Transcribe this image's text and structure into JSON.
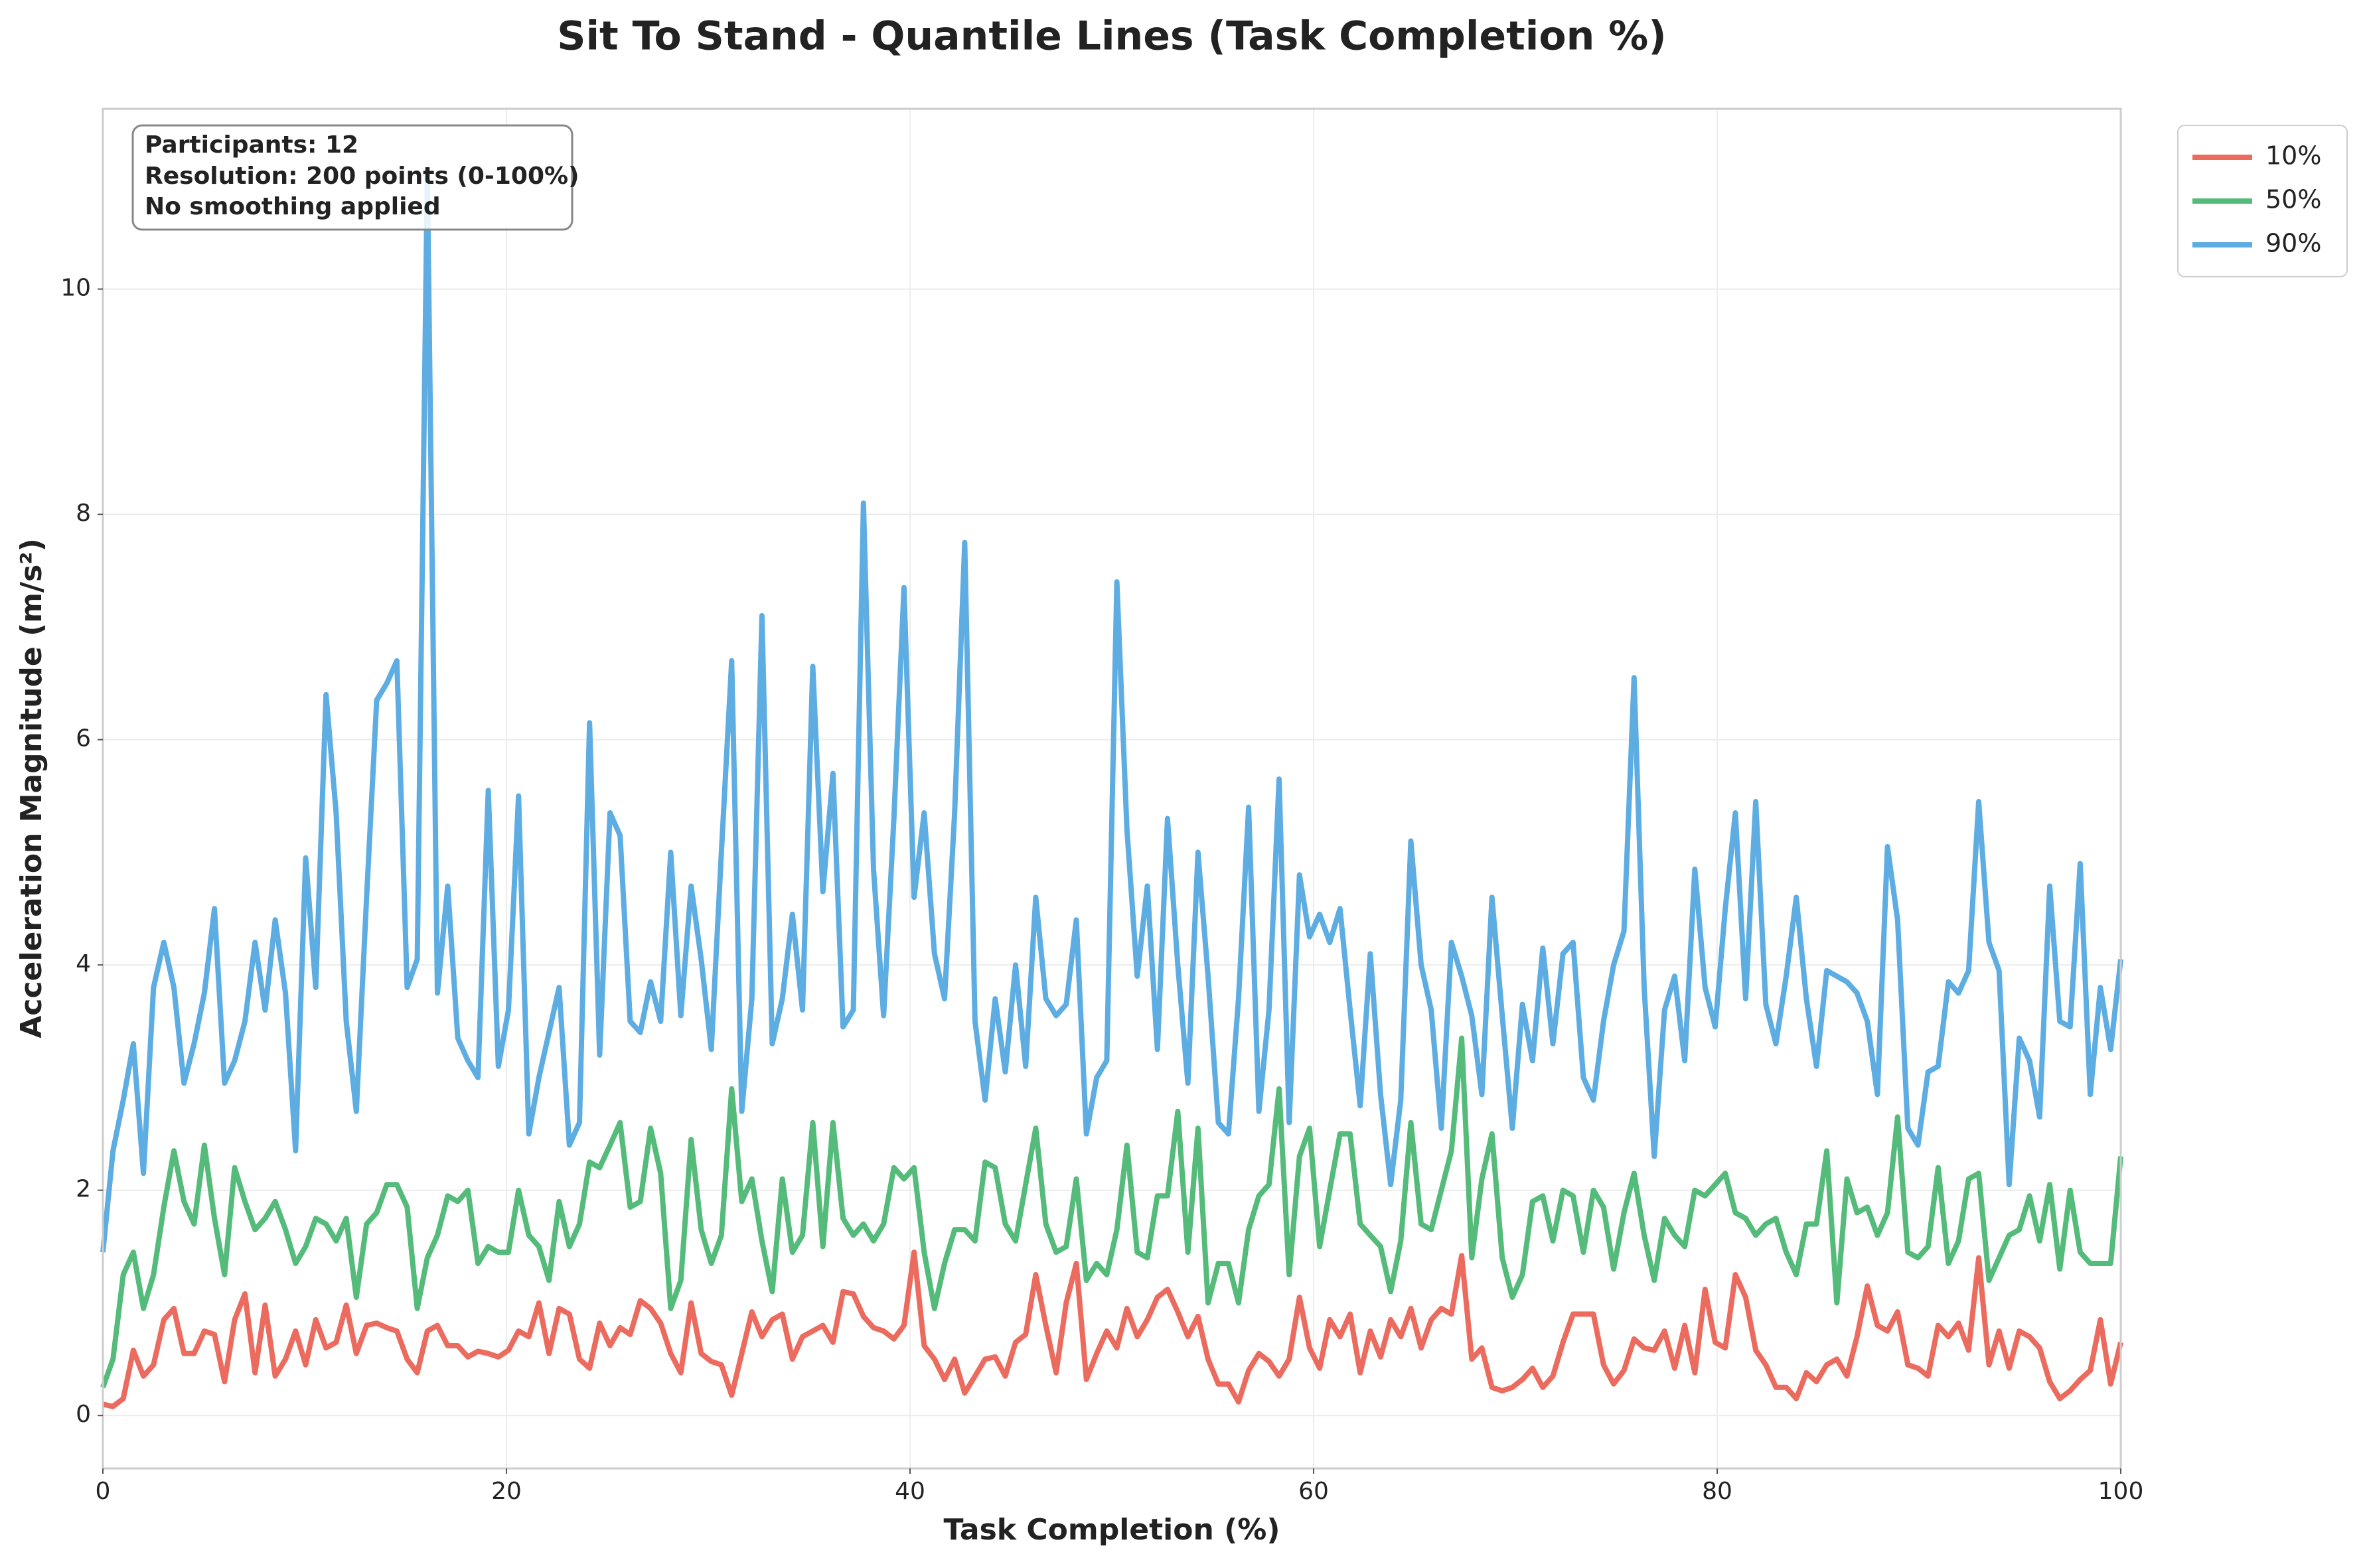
{
  "chart_data": {
    "type": "line",
    "title": "Sit To Stand - Quantile Lines (Task Completion %)",
    "xlabel": "Task Completion (%)",
    "ylabel": "Acceleration Magnitude (m/s²)",
    "annotation": [
      "Participants: 12",
      "Resolution: 200 points (0-100%)",
      "No smoothing applied"
    ],
    "xlim": [
      0,
      100
    ],
    "xticks": [
      0,
      20,
      40,
      60,
      80,
      100
    ],
    "ylim": [
      -0.47,
      11.6
    ],
    "yticks": [
      0,
      2,
      4,
      6,
      8,
      10
    ],
    "grid": true,
    "legend": "outside-upper-right",
    "x": [
      0,
      0.5,
      1.01,
      1.51,
      2.01,
      2.51,
      3.02,
      3.52,
      4.02,
      4.52,
      5.03,
      5.53,
      6.03,
      6.53,
      7.04,
      7.54,
      8.04,
      8.54,
      9.05,
      9.55,
      10.05,
      10.55,
      11.06,
      11.56,
      12.06,
      12.56,
      13.07,
      13.57,
      14.07,
      14.57,
      15.08,
      15.58,
      16.08,
      16.58,
      17.09,
      17.59,
      18.09,
      18.59,
      19.1,
      19.6,
      20.1,
      20.6,
      21.11,
      21.61,
      22.11,
      22.61,
      23.12,
      23.62,
      24.12,
      24.62,
      25.13,
      25.63,
      26.13,
      26.63,
      27.14,
      27.64,
      28.14,
      28.64,
      29.15,
      29.65,
      30.15,
      30.65,
      31.16,
      31.66,
      32.16,
      32.66,
      33.17,
      33.67,
      34.17,
      34.67,
      35.18,
      35.68,
      36.18,
      36.68,
      37.19,
      37.69,
      38.19,
      38.69,
      39.2,
      39.7,
      40.2,
      40.7,
      41.21,
      41.71,
      42.21,
      42.71,
      43.22,
      43.72,
      44.22,
      44.72,
      45.23,
      45.73,
      46.23,
      46.73,
      47.24,
      47.74,
      48.24,
      48.74,
      49.25,
      49.75,
      50.25,
      50.75,
      51.26,
      51.76,
      52.26,
      52.76,
      53.27,
      53.77,
      54.27,
      54.77,
      55.28,
      55.78,
      56.28,
      56.78,
      57.29,
      57.79,
      58.29,
      58.79,
      59.3,
      59.8,
      60.3,
      60.8,
      61.31,
      61.81,
      62.31,
      62.81,
      63.32,
      63.82,
      64.32,
      64.82,
      65.33,
      65.83,
      66.33,
      66.83,
      67.34,
      67.84,
      68.34,
      68.84,
      69.35,
      69.85,
      70.35,
      70.85,
      71.36,
      71.86,
      72.36,
      72.86,
      73.37,
      73.87,
      74.37,
      74.87,
      75.38,
      75.88,
      76.38,
      76.88,
      77.39,
      77.89,
      78.39,
      78.89,
      79.4,
      79.9,
      80.4,
      80.9,
      81.41,
      81.91,
      82.41,
      82.91,
      83.42,
      83.92,
      84.42,
      84.92,
      85.43,
      85.93,
      86.43,
      86.93,
      87.44,
      87.94,
      88.44,
      88.94,
      89.45,
      89.95,
      90.45,
      90.95,
      91.46,
      91.96,
      92.46,
      92.96,
      93.47,
      93.97,
      94.47,
      94.97,
      95.48,
      95.98,
      96.48,
      96.98,
      97.49,
      97.99,
      98.49,
      98.99,
      99.5,
      100
    ],
    "series": [
      {
        "name": "10%",
        "color": "#eb6b5f",
        "values": [
          0.1,
          0.08,
          0.15,
          0.58,
          0.35,
          0.45,
          0.85,
          0.95,
          0.55,
          0.55,
          0.75,
          0.72,
          0.3,
          0.85,
          1.08,
          0.38,
          0.98,
          0.35,
          0.5,
          0.75,
          0.45,
          0.85,
          0.6,
          0.65,
          0.98,
          0.55,
          0.8,
          0.82,
          0.78,
          0.75,
          0.5,
          0.38,
          0.75,
          0.8,
          0.62,
          0.62,
          0.52,
          0.57,
          0.55,
          0.52,
          0.58,
          0.75,
          0.7,
          1.0,
          0.55,
          0.95,
          0.9,
          0.5,
          0.42,
          0.82,
          0.62,
          0.78,
          0.72,
          1.02,
          0.95,
          0.82,
          0.55,
          0.38,
          1.0,
          0.55,
          0.48,
          0.45,
          0.18,
          0.55,
          0.92,
          0.7,
          0.85,
          0.9,
          0.5,
          0.7,
          0.75,
          0.8,
          0.65,
          1.1,
          1.08,
          0.88,
          0.78,
          0.75,
          0.68,
          0.8,
          1.45,
          0.62,
          0.5,
          0.32,
          0.5,
          0.2,
          0.35,
          0.5,
          0.52,
          0.35,
          0.65,
          0.72,
          1.25,
          0.8,
          0.38,
          1.0,
          1.35,
          0.32,
          0.55,
          0.75,
          0.6,
          0.95,
          0.7,
          0.85,
          1.05,
          1.12,
          0.92,
          0.7,
          0.88,
          0.5,
          0.28,
          0.28,
          0.12,
          0.4,
          0.55,
          0.48,
          0.35,
          0.5,
          1.05,
          0.6,
          0.42,
          0.85,
          0.7,
          0.9,
          0.38,
          0.75,
          0.52,
          0.85,
          0.7,
          0.95,
          0.6,
          0.85,
          0.95,
          0.9,
          1.42,
          0.5,
          0.6,
          0.25,
          0.22,
          0.25,
          0.32,
          0.42,
          0.25,
          0.35,
          0.65,
          0.9,
          0.9,
          0.9,
          0.45,
          0.28,
          0.4,
          0.68,
          0.6,
          0.58,
          0.75,
          0.42,
          0.8,
          0.38,
          1.12,
          0.65,
          0.6,
          1.25,
          1.05,
          0.58,
          0.45,
          0.25,
          0.25,
          0.15,
          0.38,
          0.3,
          0.45,
          0.5,
          0.35,
          0.7,
          1.15,
          0.8,
          0.75,
          0.92,
          0.45,
          0.42,
          0.35,
          0.8,
          0.7,
          0.82,
          0.58,
          1.4,
          0.45,
          0.75,
          0.42,
          0.75,
          0.7,
          0.6,
          0.3,
          0.15,
          0.22,
          0.32,
          0.4,
          0.85,
          0.28,
          0.65
        ]
      },
      {
        "name": "50%",
        "color": "#55bb7b",
        "values": [
          0.25,
          0.5,
          1.25,
          1.45,
          0.95,
          1.25,
          1.85,
          2.35,
          1.9,
          1.7,
          2.4,
          1.75,
          1.25,
          2.2,
          1.9,
          1.65,
          1.75,
          1.9,
          1.65,
          1.35,
          1.5,
          1.75,
          1.7,
          1.55,
          1.75,
          1.05,
          1.7,
          1.8,
          2.05,
          2.05,
          1.85,
          0.95,
          1.4,
          1.6,
          1.95,
          1.9,
          2.0,
          1.35,
          1.5,
          1.45,
          1.45,
          2.0,
          1.6,
          1.5,
          1.2,
          1.9,
          1.5,
          1.7,
          2.25,
          2.2,
          2.4,
          2.6,
          1.85,
          1.9,
          2.55,
          2.15,
          0.95,
          1.2,
          2.45,
          1.65,
          1.35,
          1.6,
          2.9,
          1.9,
          2.1,
          1.55,
          1.1,
          2.1,
          1.45,
          1.6,
          2.6,
          1.5,
          2.6,
          1.75,
          1.6,
          1.7,
          1.55,
          1.7,
          2.2,
          2.1,
          2.2,
          1.45,
          0.95,
          1.35,
          1.65,
          1.65,
          1.55,
          2.25,
          2.2,
          1.7,
          1.55,
          2.05,
          2.55,
          1.7,
          1.45,
          1.5,
          2.1,
          1.2,
          1.35,
          1.25,
          1.65,
          2.4,
          1.45,
          1.4,
          1.95,
          1.95,
          2.7,
          1.45,
          2.55,
          1.0,
          1.35,
          1.35,
          1.0,
          1.65,
          1.95,
          2.05,
          2.9,
          1.25,
          2.3,
          2.55,
          1.5,
          2.0,
          2.5,
          2.5,
          1.7,
          1.6,
          1.5,
          1.1,
          1.55,
          2.6,
          1.7,
          1.65,
          2.0,
          2.35,
          3.35,
          1.4,
          2.1,
          2.5,
          1.4,
          1.05,
          1.25,
          1.9,
          1.95,
          1.55,
          2.0,
          1.95,
          1.45,
          2.0,
          1.85,
          1.3,
          1.8,
          2.15,
          1.6,
          1.2,
          1.75,
          1.6,
          1.5,
          2.0,
          1.95,
          2.05,
          2.15,
          1.8,
          1.75,
          1.6,
          1.7,
          1.75,
          1.45,
          1.25,
          1.7,
          1.7,
          2.35,
          1.0,
          2.1,
          1.8,
          1.85,
          1.6,
          1.8,
          2.65,
          1.45,
          1.4,
          1.5,
          2.2,
          1.35,
          1.55,
          2.1,
          2.15,
          1.2,
          1.4,
          1.6,
          1.65,
          1.95,
          1.55,
          2.05,
          1.3,
          2.0,
          1.45,
          1.35,
          1.35,
          1.35,
          2.3
        ]
      },
      {
        "name": "90%",
        "color": "#5dade2",
        "values": [
          1.45,
          2.35,
          2.8,
          3.3,
          2.15,
          3.8,
          4.2,
          3.8,
          2.95,
          3.3,
          3.75,
          4.5,
          2.95,
          3.15,
          3.5,
          4.2,
          3.6,
          4.4,
          3.75,
          2.35,
          4.95,
          3.8,
          6.4,
          5.35,
          3.5,
          2.7,
          4.6,
          6.35,
          6.5,
          6.7,
          3.8,
          4.05,
          11.05,
          3.75,
          4.7,
          3.35,
          3.15,
          3.0,
          5.55,
          3.1,
          3.6,
          5.5,
          2.5,
          3.0,
          3.4,
          3.8,
          2.4,
          2.6,
          6.15,
          3.2,
          5.35,
          5.15,
          3.5,
          3.4,
          3.85,
          3.5,
          5.0,
          3.55,
          4.7,
          4.05,
          3.25,
          5.0,
          6.7,
          2.7,
          3.7,
          7.1,
          3.3,
          3.7,
          4.45,
          3.6,
          6.65,
          4.65,
          5.7,
          3.45,
          3.6,
          8.1,
          4.85,
          3.55,
          5.3,
          7.35,
          4.6,
          5.35,
          4.1,
          3.7,
          5.35,
          7.75,
          3.5,
          2.8,
          3.7,
          3.05,
          4.0,
          3.1,
          4.6,
          3.7,
          3.55,
          3.65,
          4.4,
          2.5,
          3.0,
          3.15,
          7.4,
          5.2,
          3.9,
          4.7,
          3.25,
          5.3,
          4.0,
          2.95,
          5.0,
          3.9,
          2.6,
          2.5,
          3.7,
          5.4,
          2.7,
          3.6,
          5.65,
          2.6,
          4.8,
          4.25,
          4.45,
          4.2,
          4.5,
          3.6,
          2.75,
          4.1,
          2.85,
          2.05,
          2.8,
          5.1,
          4.0,
          3.6,
          2.55,
          4.2,
          3.9,
          3.55,
          2.85,
          4.6,
          3.55,
          2.55,
          3.65,
          3.15,
          4.15,
          3.3,
          4.1,
          4.2,
          3.0,
          2.8,
          3.5,
          4.0,
          4.3,
          6.55,
          3.8,
          2.3,
          3.6,
          3.9,
          3.15,
          4.85,
          3.8,
          3.45,
          4.5,
          5.35,
          3.7,
          5.45,
          3.65,
          3.3,
          3.9,
          4.6,
          3.7,
          3.1,
          3.95,
          3.9,
          3.85,
          3.75,
          3.5,
          2.85,
          5.05,
          4.4,
          2.55,
          2.4,
          3.05,
          3.1,
          3.85,
          3.75,
          3.95,
          5.45,
          4.2,
          3.95,
          2.05,
          3.35,
          3.15,
          2.65,
          4.7,
          3.5,
          3.45,
          4.9,
          2.85,
          3.8,
          3.25,
          4.05
        ]
      }
    ]
  }
}
